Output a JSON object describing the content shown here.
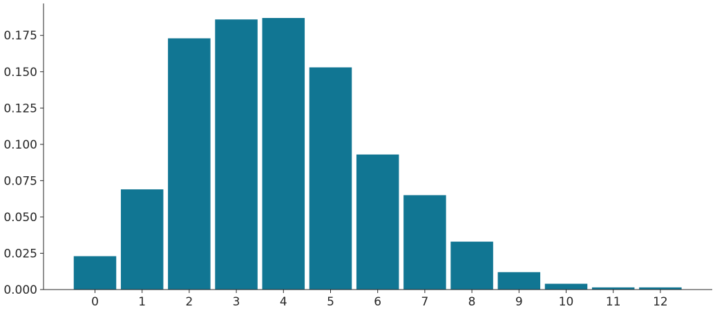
{
  "chart_data": {
    "type": "bar",
    "title": "",
    "xlabel": "",
    "ylabel": "",
    "categories": [
      "0",
      "1",
      "2",
      "3",
      "4",
      "5",
      "6",
      "7",
      "8",
      "9",
      "10",
      "11",
      "12"
    ],
    "values": [
      0.023,
      0.069,
      0.173,
      0.186,
      0.187,
      0.153,
      0.093,
      0.065,
      0.033,
      0.012,
      0.004,
      0.0015,
      0.0015
    ],
    "ylim": [
      0,
      0.197
    ],
    "yticks": [
      0.0,
      0.025,
      0.05,
      0.075,
      0.1,
      0.125,
      0.15,
      0.175
    ],
    "ytick_labels": [
      "0.000",
      "0.025",
      "0.050",
      "0.075",
      "0.100",
      "0.125",
      "0.150",
      "0.175"
    ],
    "bar_color": "#117693",
    "grid": false,
    "legend": "none"
  }
}
